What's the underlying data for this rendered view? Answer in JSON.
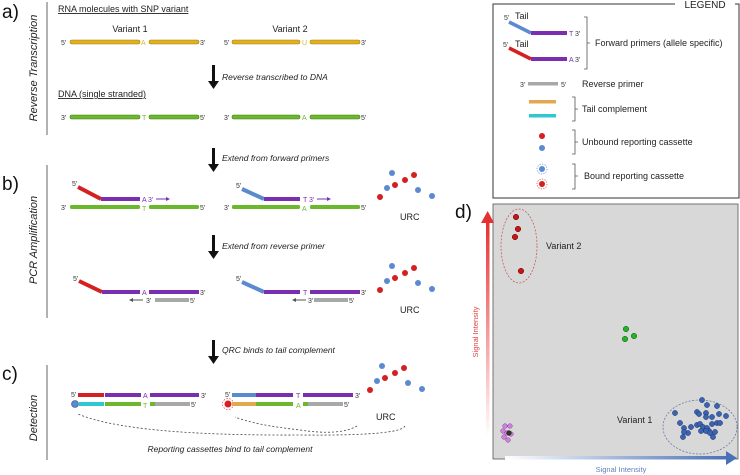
{
  "panels": {
    "a": "a)",
    "b": "b)",
    "c": "c)",
    "d": "d)"
  },
  "side_labels": {
    "a": "Reverse Transcription",
    "b": "PCR Amplification",
    "c": "Detection"
  },
  "section_a": {
    "rna_heading": "RNA molecules with SNP variant",
    "variant1": "Variant 1",
    "variant2": "Variant 2",
    "rna_base1": "A",
    "rna_base2": "U",
    "step1": "Reverse transcribed to DNA",
    "dna_heading": "DNA (single stranded)",
    "dna_base1": "T",
    "dna_base2": "A"
  },
  "ends": {
    "five": "5'",
    "three": "3'"
  },
  "steps": {
    "extend_forward": "Extend from forward primers",
    "extend_reverse": "Extend from reverse primer",
    "qrc_binds": "QRC binds to tail complement",
    "reporting": "Reporting cassettes bind to tail complement"
  },
  "urc": "URC",
  "bases": {
    "A": "A",
    "T": "T"
  },
  "legend": {
    "title": "LEGEND",
    "tail": "Tail",
    "forward_primers": "Forward primers (allele specific)",
    "reverse_primer": "Reverse primer",
    "tail_complement": "Tail complement",
    "unbound": "Unbound reporting cassette",
    "bound": "Bound reporting cassette"
  },
  "plot": {
    "y_label": "Signal Intensity",
    "x_label": "Signal Intensity",
    "variant2": "Variant 2",
    "variant1": "Variant 1"
  },
  "colors": {
    "rna": "#e0b020",
    "dna": "#6cb82c",
    "primer": "#7a2fb0",
    "red": "#d42020",
    "blue": "#5b8ad0",
    "gray": "#a8a8a8",
    "cyan": "#30c8d0",
    "tan": "#e0a850"
  }
}
